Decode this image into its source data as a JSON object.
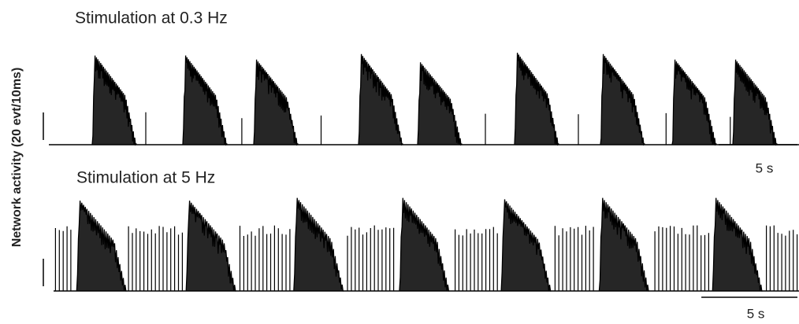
{
  "chart_data": [
    {
      "type": "trace",
      "title": "Stimulation at 0.3 Hz",
      "y_label": "Network activity (20 evt/10ms)",
      "stimulus_rate_hz": 0.3,
      "xlim": [
        0,
        47.6
      ],
      "ylim": [
        0,
        70
      ],
      "bursts": [
        2.75,
        8.5,
        13,
        19.65,
        23.4,
        29.55,
        35,
        39.55,
        43.4
      ],
      "peaks": [
        65,
        65,
        62,
        66,
        60,
        67,
        66,
        62,
        62
      ],
      "burst_duration": 2.8,
      "time_scalebar": {
        "value": 5,
        "label": "5 s"
      },
      "y_scalebar": 20,
      "color": "#000000"
    },
    {
      "type": "trace",
      "title": "Stimulation at 5 Hz",
      "stimulus_rate_hz": 5,
      "xlim": [
        0,
        38.8
      ],
      "ylim": [
        0,
        70
      ],
      "bursts": [
        1.2,
        6.9,
        12.5,
        18.0,
        23.3,
        28.4,
        34.3
      ],
      "peaks": [
        66,
        66,
        68,
        68,
        67,
        68,
        68
      ],
      "burst_duration": 2.6,
      "time_scalebar": {
        "value": 5,
        "label": "5 s"
      },
      "y_scalebar": 20,
      "color": "#000000"
    }
  ]
}
